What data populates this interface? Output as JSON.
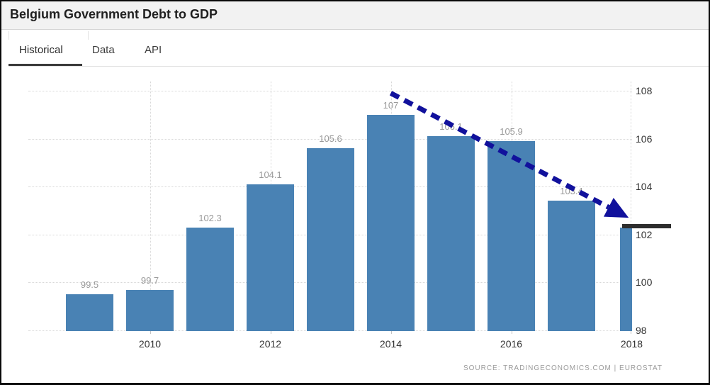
{
  "header": {
    "title": "Belgium Government Debt to GDP"
  },
  "tabs": [
    {
      "label": "Historical",
      "active": true
    },
    {
      "label": "Data",
      "active": false
    },
    {
      "label": "API",
      "active": false
    }
  ],
  "chart_data": {
    "type": "bar",
    "title": "Belgium Government Debt to GDP",
    "x": [
      2009,
      2010,
      2011,
      2012,
      2013,
      2014,
      2015,
      2016,
      2017,
      2018
    ],
    "values": [
      99.5,
      99.7,
      102.3,
      104.1,
      105.6,
      107,
      106.1,
      105.9,
      103.4,
      102.3
    ],
    "bar_labels": [
      "99.5",
      "99.7",
      "102.3",
      "104.1",
      "105.6",
      "107",
      "106.1",
      "105.9",
      "103.4",
      ""
    ],
    "x_tick_labels": [
      "2010",
      "2012",
      "2014",
      "2016",
      "2018"
    ],
    "y_ticks": [
      98,
      100,
      102,
      104,
      106,
      108
    ],
    "ylim": [
      98,
      108
    ],
    "xlabel": "",
    "ylabel": "",
    "grid": "dotted",
    "legend": "none",
    "y_axis_side": "right",
    "bar_color": "#4982b4",
    "axis_label_color": "#333333",
    "bar_label_color": "#999999",
    "annotations": {
      "trend_arrow": {
        "style": "dashed",
        "color": "#11119c",
        "from": {
          "x": 2014.0,
          "y": 107.9
        },
        "to": {
          "x": 2017.95,
          "y": 102.7
        }
      },
      "latest_value_marker": {
        "style": "solid-horizontal-line",
        "color": "#2d2d2d",
        "y": 102.35
      }
    }
  },
  "footer": {
    "source": "SOURCE:  TRADINGECONOMICS.COM  |  EUROSTAT"
  }
}
